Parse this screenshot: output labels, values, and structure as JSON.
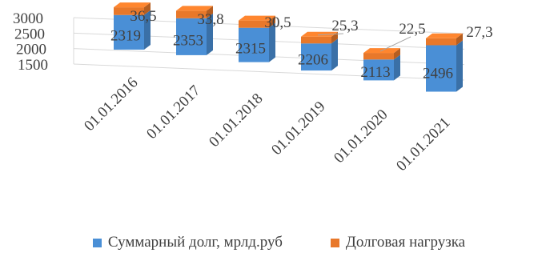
{
  "chart_data": {
    "type": "bar",
    "categories": [
      "01.01.2016",
      "01.01.2017",
      "01.01.2018",
      "01.01.2019",
      "01.01.2020",
      "01.01.2021"
    ],
    "series": [
      {
        "name": "Суммарный долг, мрлд.руб",
        "values": [
          2319,
          2353,
          2315,
          2206,
          2113,
          2496
        ],
        "color": "#4a8fd6"
      },
      {
        "name": "Долговая нагрузка",
        "values": [
          36.5,
          33.8,
          30.5,
          25.3,
          22.5,
          27.3
        ],
        "color": "#e8782a"
      }
    ],
    "data_labels": {
      "debt": [
        "2319",
        "2353",
        "2315",
        "2206",
        "2113",
        "2496"
      ],
      "load": [
        "36,5",
        "33,8",
        "30,5",
        "25,3",
        "22,5",
        "27,3"
      ]
    },
    "y_ticks": [
      "3000",
      "2500",
      "2000",
      "1500"
    ],
    "ylim": [
      1500,
      3000
    ],
    "grid": true,
    "legend_position": "bottom",
    "style": "3d-stacked"
  }
}
